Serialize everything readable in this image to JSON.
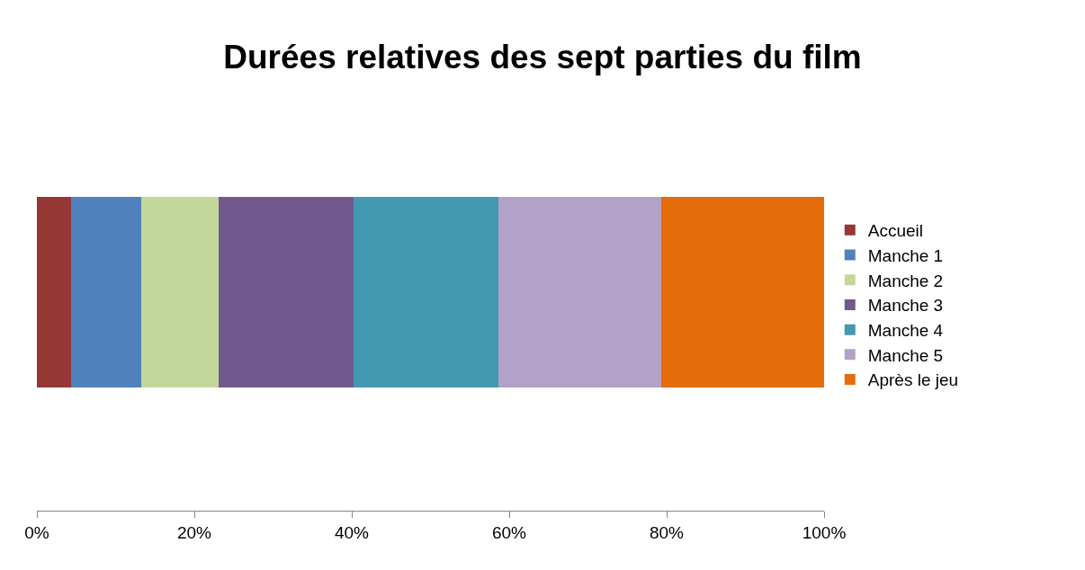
{
  "chart_data": {
    "type": "bar",
    "orientation": "horizontal",
    "stacked": true,
    "title": "Durées relatives des sept parties du film",
    "categories": [
      null
    ],
    "series": [
      {
        "name": "Accueil",
        "color": "#953735",
        "values": [
          4.3
        ]
      },
      {
        "name": "Manche 1",
        "color": "#4f81bd",
        "values": [
          9.0
        ]
      },
      {
        "name": "Manche 2",
        "color": "#c4d79b",
        "values": [
          9.8
        ]
      },
      {
        "name": "Manche 3",
        "color": "#72598d",
        "values": [
          17.1
        ]
      },
      {
        "name": "Manche 4",
        "color": "#4299b1",
        "values": [
          18.4
        ]
      },
      {
        "name": "Manche 5",
        "color": "#b2a2c7",
        "values": [
          20.7
        ]
      },
      {
        "name": "Après le jeu",
        "color": "#e46c0a",
        "values": [
          20.7
        ]
      }
    ],
    "xlim": [
      0,
      100
    ],
    "xticks": [
      {
        "value": 0,
        "label": "0%"
      },
      {
        "value": 20,
        "label": "20%"
      },
      {
        "value": 40,
        "label": "40%"
      },
      {
        "value": 60,
        "label": "60%"
      },
      {
        "value": 80,
        "label": "80%"
      },
      {
        "value": 100,
        "label": "100%"
      }
    ],
    "legend": "right",
    "grid": false
  }
}
